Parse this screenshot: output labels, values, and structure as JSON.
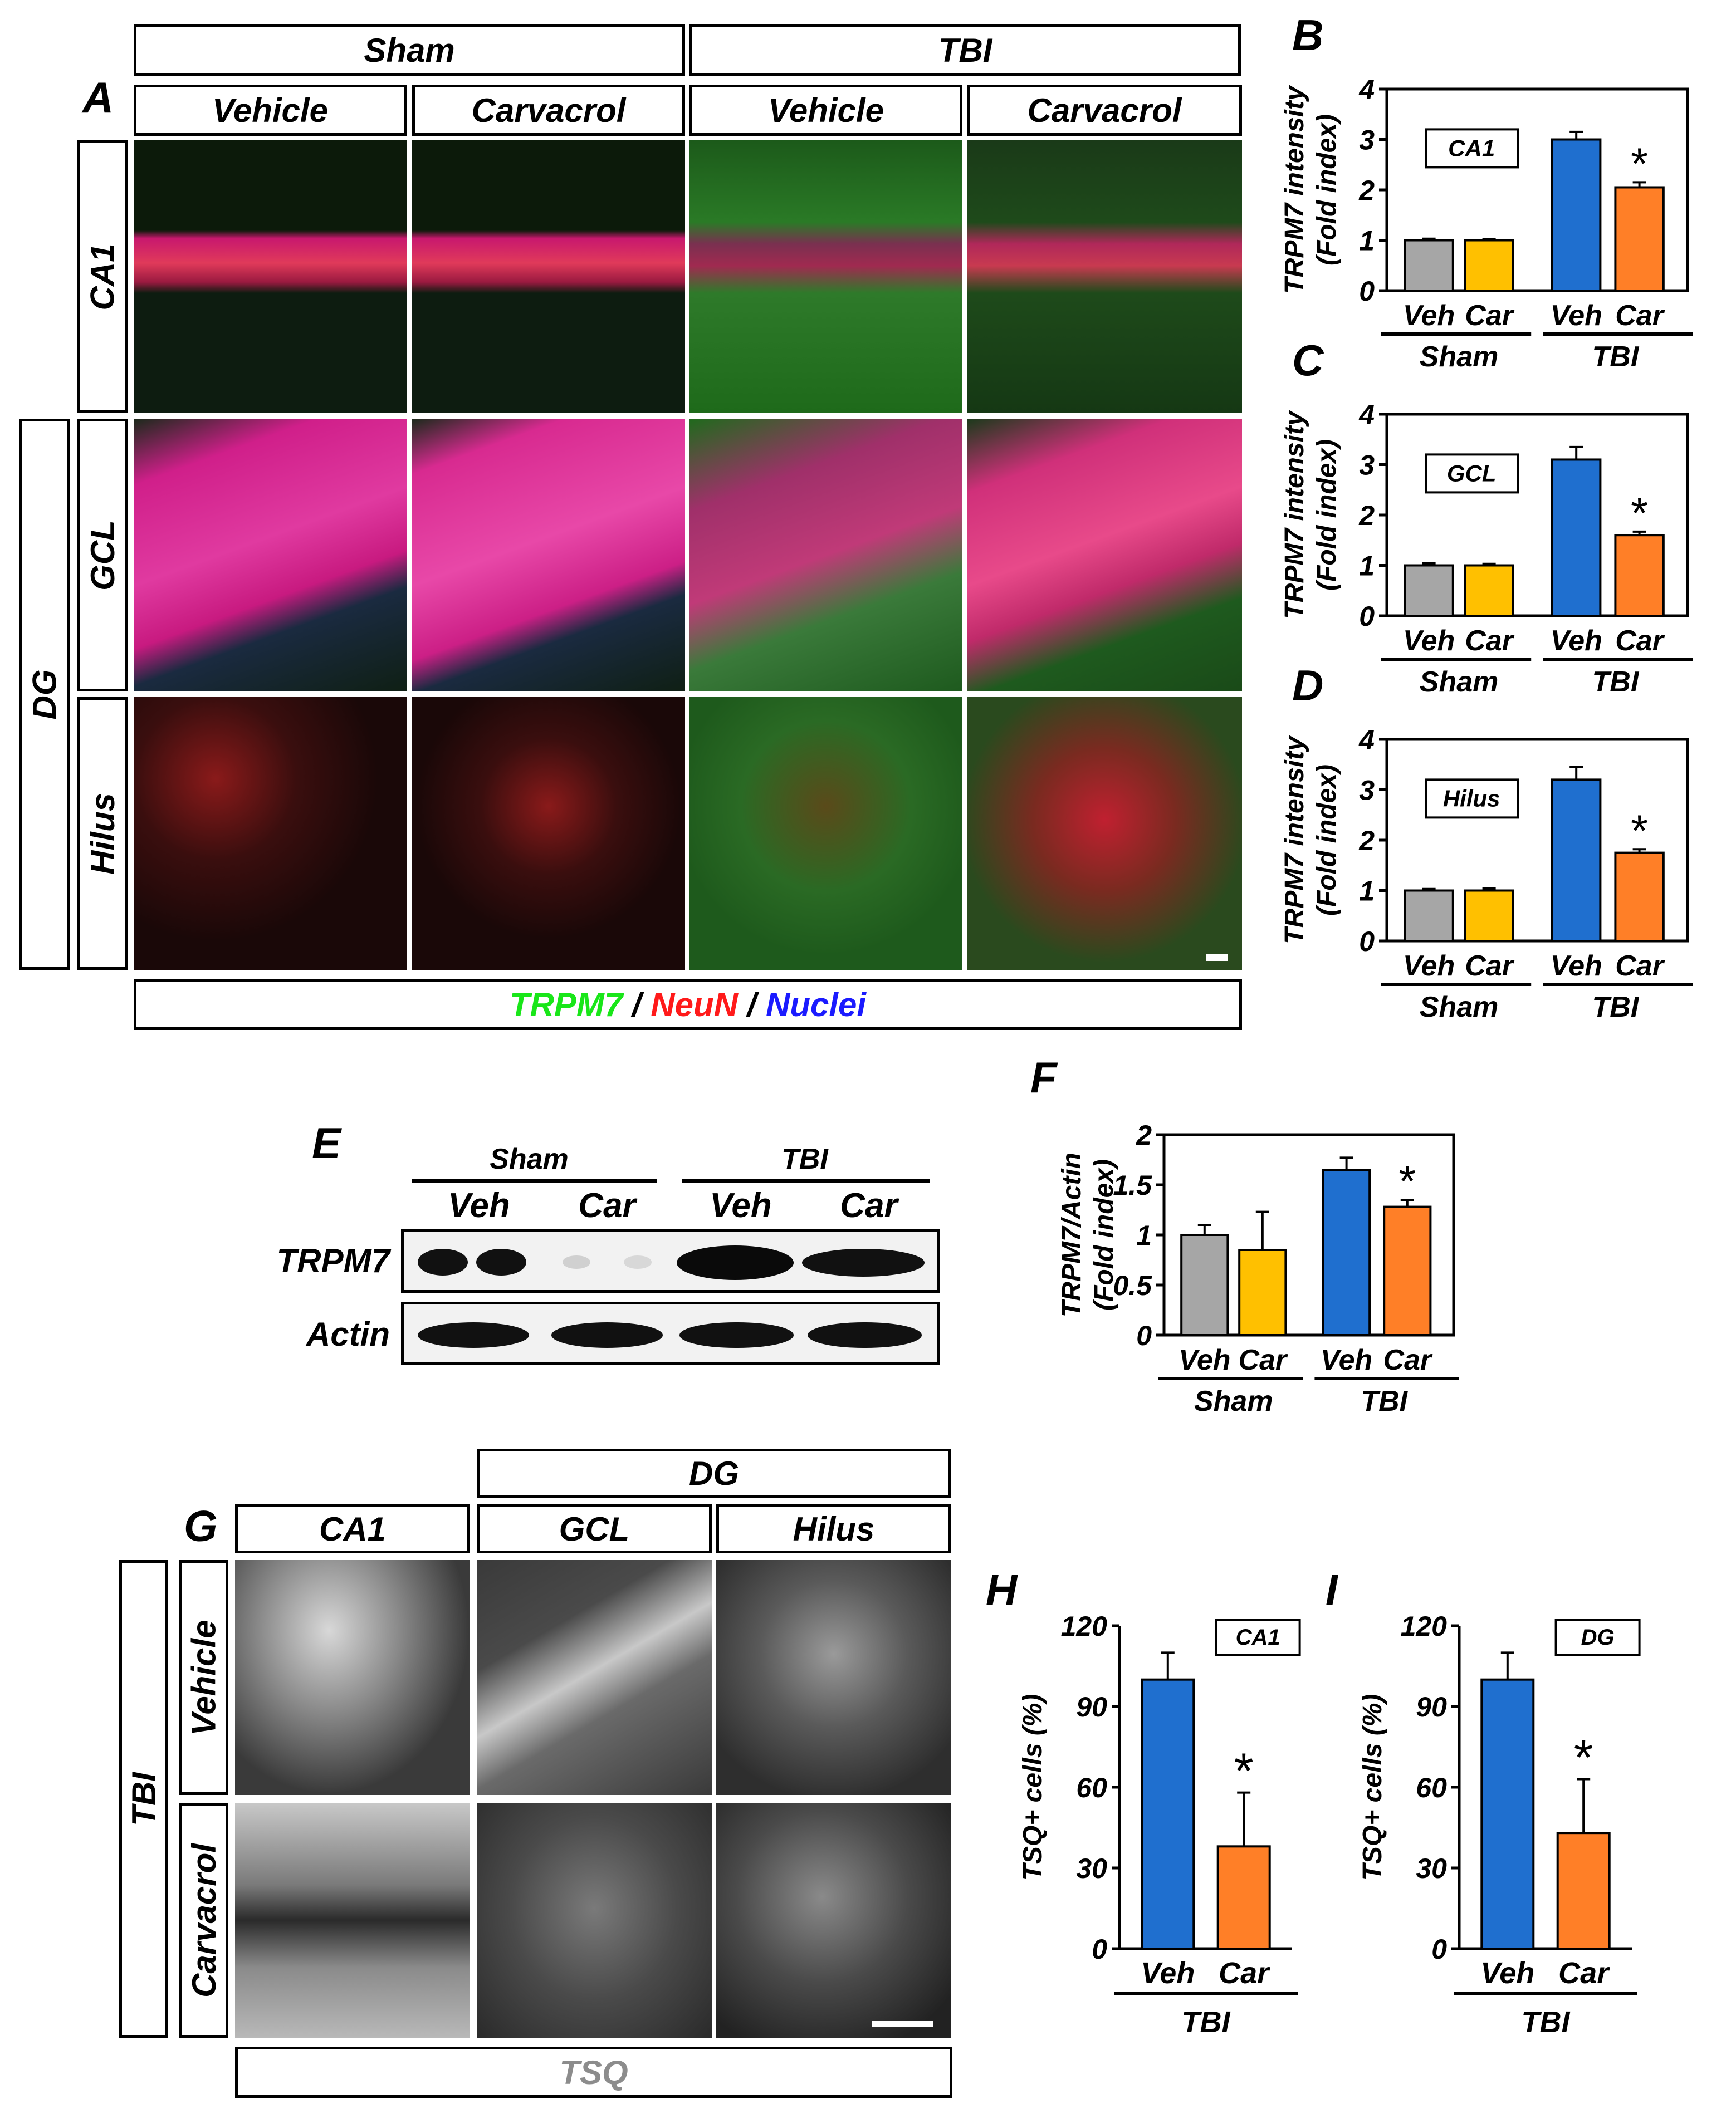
{
  "panels": {
    "A": "A",
    "B": "B",
    "C": "C",
    "D": "D",
    "E": "E",
    "F": "F",
    "G": "G",
    "H": "H",
    "I": "I"
  },
  "panel_a": {
    "group_headers": [
      "Sham",
      "TBI"
    ],
    "column_headers": [
      "Vehicle",
      "Carvacrol",
      "Vehicle",
      "Carvacrol"
    ],
    "row_labels": [
      "CA1",
      "GCL",
      "Hilus"
    ],
    "dg_label": "DG",
    "legend": {
      "trpm7": "TRPM7",
      "sep1": " / ",
      "neun": "NeuN",
      "sep2": " / ",
      "nuclei": "Nuclei"
    },
    "legend_colors": {
      "trpm7": "#19e619",
      "neun": "#ff1a1a",
      "nuclei": "#1a1aff"
    }
  },
  "panel_e": {
    "group_headers": [
      "Sham",
      "TBI"
    ],
    "lane_labels": [
      "Veh",
      "Car",
      "Veh",
      "Car"
    ],
    "row_labels": [
      "TRPM7",
      "Actin"
    ]
  },
  "panel_g": {
    "dg_header": "DG",
    "column_headers": [
      "CA1",
      "GCL",
      "Hilus"
    ],
    "row_labels": [
      "Vehicle",
      "Carvacrol"
    ],
    "tbi_label": "TBI",
    "stain_label": "TSQ"
  },
  "colors": {
    "sham_veh": "#a6a6a6",
    "sham_car": "#ffc000",
    "tbi_veh": "#1f6fcf",
    "tbi_car": "#ff7f27"
  },
  "chart_data": [
    {
      "id": "B",
      "type": "bar",
      "categories": [
        "Veh",
        "Car",
        "Veh",
        "Car"
      ],
      "groups": [
        "Sham",
        "TBI"
      ],
      "values": [
        1.0,
        1.0,
        3.0,
        2.05
      ],
      "errors": [
        0.03,
        0.02,
        0.15,
        0.1
      ],
      "significance": [
        false,
        false,
        false,
        true
      ],
      "ylabel": [
        "TRPM7 intensity",
        "(Fold index)"
      ],
      "ylim": [
        0,
        4
      ],
      "yticks": [
        "0",
        "1",
        "2",
        "3",
        "4"
      ],
      "region_label": "CA1"
    },
    {
      "id": "C",
      "type": "bar",
      "categories": [
        "Veh",
        "Car",
        "Veh",
        "Car"
      ],
      "groups": [
        "Sham",
        "TBI"
      ],
      "values": [
        1.0,
        1.0,
        3.1,
        1.6
      ],
      "errors": [
        0.04,
        0.03,
        0.25,
        0.07
      ],
      "significance": [
        false,
        false,
        false,
        true
      ],
      "ylabel": [
        "TRPM7 intensity",
        "(Fold index)"
      ],
      "ylim": [
        0,
        4
      ],
      "yticks": [
        "0",
        "1",
        "2",
        "3",
        "4"
      ],
      "region_label": "GCL"
    },
    {
      "id": "D",
      "type": "bar",
      "categories": [
        "Veh",
        "Car",
        "Veh",
        "Car"
      ],
      "groups": [
        "Sham",
        "TBI"
      ],
      "values": [
        1.0,
        1.0,
        3.2,
        1.75
      ],
      "errors": [
        0.03,
        0.04,
        0.25,
        0.07
      ],
      "significance": [
        false,
        false,
        false,
        true
      ],
      "ylabel": [
        "TRPM7 intensity",
        "(Fold index)"
      ],
      "ylim": [
        0,
        4
      ],
      "yticks": [
        "0",
        "1",
        "2",
        "3",
        "4"
      ],
      "region_label": "Hilus"
    },
    {
      "id": "F",
      "type": "bar",
      "categories": [
        "Veh",
        "Car",
        "Veh",
        "Car"
      ],
      "groups": [
        "Sham",
        "TBI"
      ],
      "values": [
        1.0,
        0.85,
        1.65,
        1.28
      ],
      "errors": [
        0.1,
        0.38,
        0.12,
        0.07
      ],
      "significance": [
        false,
        false,
        false,
        true
      ],
      "ylabel": [
        "TRPM7/Actin",
        "(Fold index)"
      ],
      "ylim": [
        0,
        2
      ],
      "yticks": [
        "0",
        "0.5",
        "1",
        "1.5",
        "2"
      ]
    },
    {
      "id": "H",
      "type": "bar",
      "categories": [
        "Veh",
        "Car"
      ],
      "groups": [
        "TBI"
      ],
      "values": [
        100,
        38
      ],
      "errors": [
        10,
        20
      ],
      "significance": [
        false,
        true
      ],
      "ylabel": [
        "TSQ+ cells (%)"
      ],
      "ylim": [
        0,
        120
      ],
      "yticks": [
        "0",
        "30",
        "60",
        "90",
        "120"
      ],
      "region_label": "CA1"
    },
    {
      "id": "I",
      "type": "bar",
      "categories": [
        "Veh",
        "Car"
      ],
      "groups": [
        "TBI"
      ],
      "values": [
        100,
        43
      ],
      "errors": [
        10,
        20
      ],
      "significance": [
        false,
        true
      ],
      "ylabel": [
        "TSQ+ cells (%)"
      ],
      "ylim": [
        0,
        120
      ],
      "yticks": [
        "0",
        "30",
        "60",
        "90",
        "120"
      ],
      "region_label": "DG"
    }
  ]
}
